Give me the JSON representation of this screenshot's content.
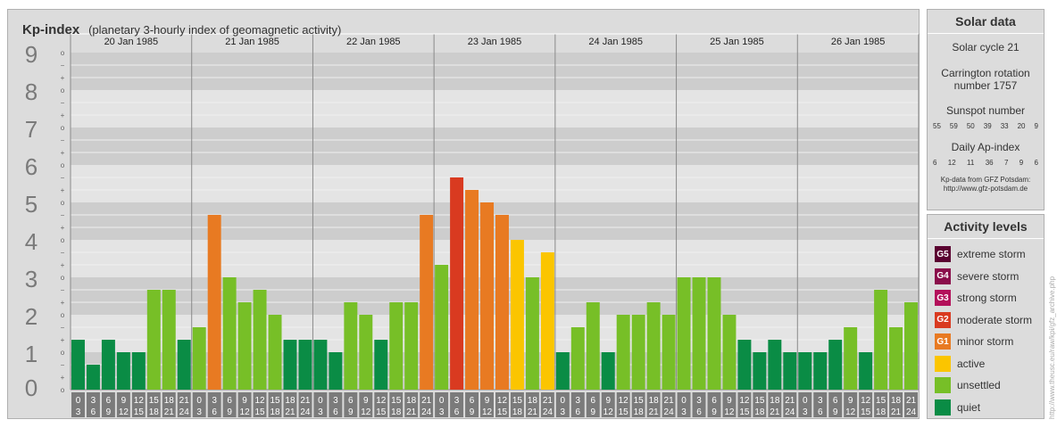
{
  "header": {
    "title": "Kp-index",
    "subtitle": "(planetary 3-hourly index of geomagnetic activity)"
  },
  "chart_data": {
    "type": "bar",
    "ylim": [
      0,
      9
    ],
    "y_ticks": [
      "0",
      "1",
      "2",
      "3",
      "4",
      "5",
      "6",
      "7",
      "8",
      "9"
    ],
    "minor_labels": [
      "o",
      "+",
      "−",
      "o",
      "+",
      "−",
      "o",
      "+",
      "−",
      "o",
      "+",
      "−",
      "o",
      "+",
      "−",
      "o",
      "+",
      "−",
      "o",
      "+",
      "−",
      "o",
      "+",
      "−",
      "o",
      "+",
      "−",
      "o"
    ],
    "days": [
      "20 Jan 1985",
      "21 Jan 1985",
      "22 Jan 1985",
      "23 Jan 1985",
      "24 Jan 1985",
      "25 Jan 1985",
      "26 Jan 1985"
    ],
    "interval_start": [
      "0",
      "3",
      "6",
      "9",
      "12",
      "15",
      "18",
      "21"
    ],
    "interval_end": [
      "3",
      "6",
      "9",
      "12",
      "15",
      "18",
      "21",
      "24"
    ],
    "values": [
      [
        1.333,
        0.667,
        1.333,
        1,
        1,
        2.667,
        2.667,
        1.333
      ],
      [
        1.667,
        4.667,
        3,
        2.333,
        2.667,
        2,
        1.333,
        1.333
      ],
      [
        1.333,
        1,
        2.333,
        2,
        1.333,
        2.333,
        2.333,
        4.667
      ],
      [
        3.333,
        5.667,
        5.333,
        5,
        4.667,
        4,
        3,
        3.667
      ],
      [
        1,
        1.667,
        2.333,
        1,
        2,
        2,
        2.333,
        2
      ],
      [
        3,
        3,
        3,
        2,
        1.333,
        1,
        1.333,
        1
      ],
      [
        1,
        1,
        1.333,
        1.667,
        1,
        2.667,
        1.667,
        2.333
      ]
    ]
  },
  "colors": {
    "quiet": "#0a8c45",
    "unsettled": "#77bf27",
    "active": "#fbc500",
    "minor": "#e87a22",
    "moderate": "#d93a20",
    "strong": "#b3105a",
    "severe": "#8a0d4a",
    "extreme": "#5a0030"
  },
  "solar": {
    "title": "Solar data",
    "cycle": "Solar cycle 21",
    "carrington_1": "Carrington rotation",
    "carrington_2": "number 1757",
    "sunspot_label": "Sunspot number",
    "sunspot": [
      "55",
      "59",
      "50",
      "39",
      "33",
      "20",
      "9"
    ],
    "ap_label": "Daily Ap-index",
    "ap": [
      "6",
      "12",
      "11",
      "36",
      "7",
      "9",
      "6"
    ],
    "source_1": "Kp-data from GFZ Potsdam:",
    "source_2": "http://www.gfz-potsdam.de"
  },
  "levels": {
    "title": "Activity levels",
    "items": [
      {
        "badge": "G5",
        "label": "extreme storm",
        "color": "#5a0030"
      },
      {
        "badge": "G4",
        "label": "severe storm",
        "color": "#8a0d4a"
      },
      {
        "badge": "G3",
        "label": "strong storm",
        "color": "#b3105a"
      },
      {
        "badge": "G2",
        "label": "moderate storm",
        "color": "#d93a20"
      },
      {
        "badge": "G1",
        "label": "minor storm",
        "color": "#e87a22"
      },
      {
        "badge": "",
        "label": "active",
        "color": "#fbc500"
      },
      {
        "badge": "",
        "label": "unsettled",
        "color": "#77bf27"
      },
      {
        "badge": "",
        "label": "quiet",
        "color": "#0a8c45"
      }
    ]
  },
  "credit": "http://www.theusc.eu/raw/kpi/gfz_archive.php"
}
